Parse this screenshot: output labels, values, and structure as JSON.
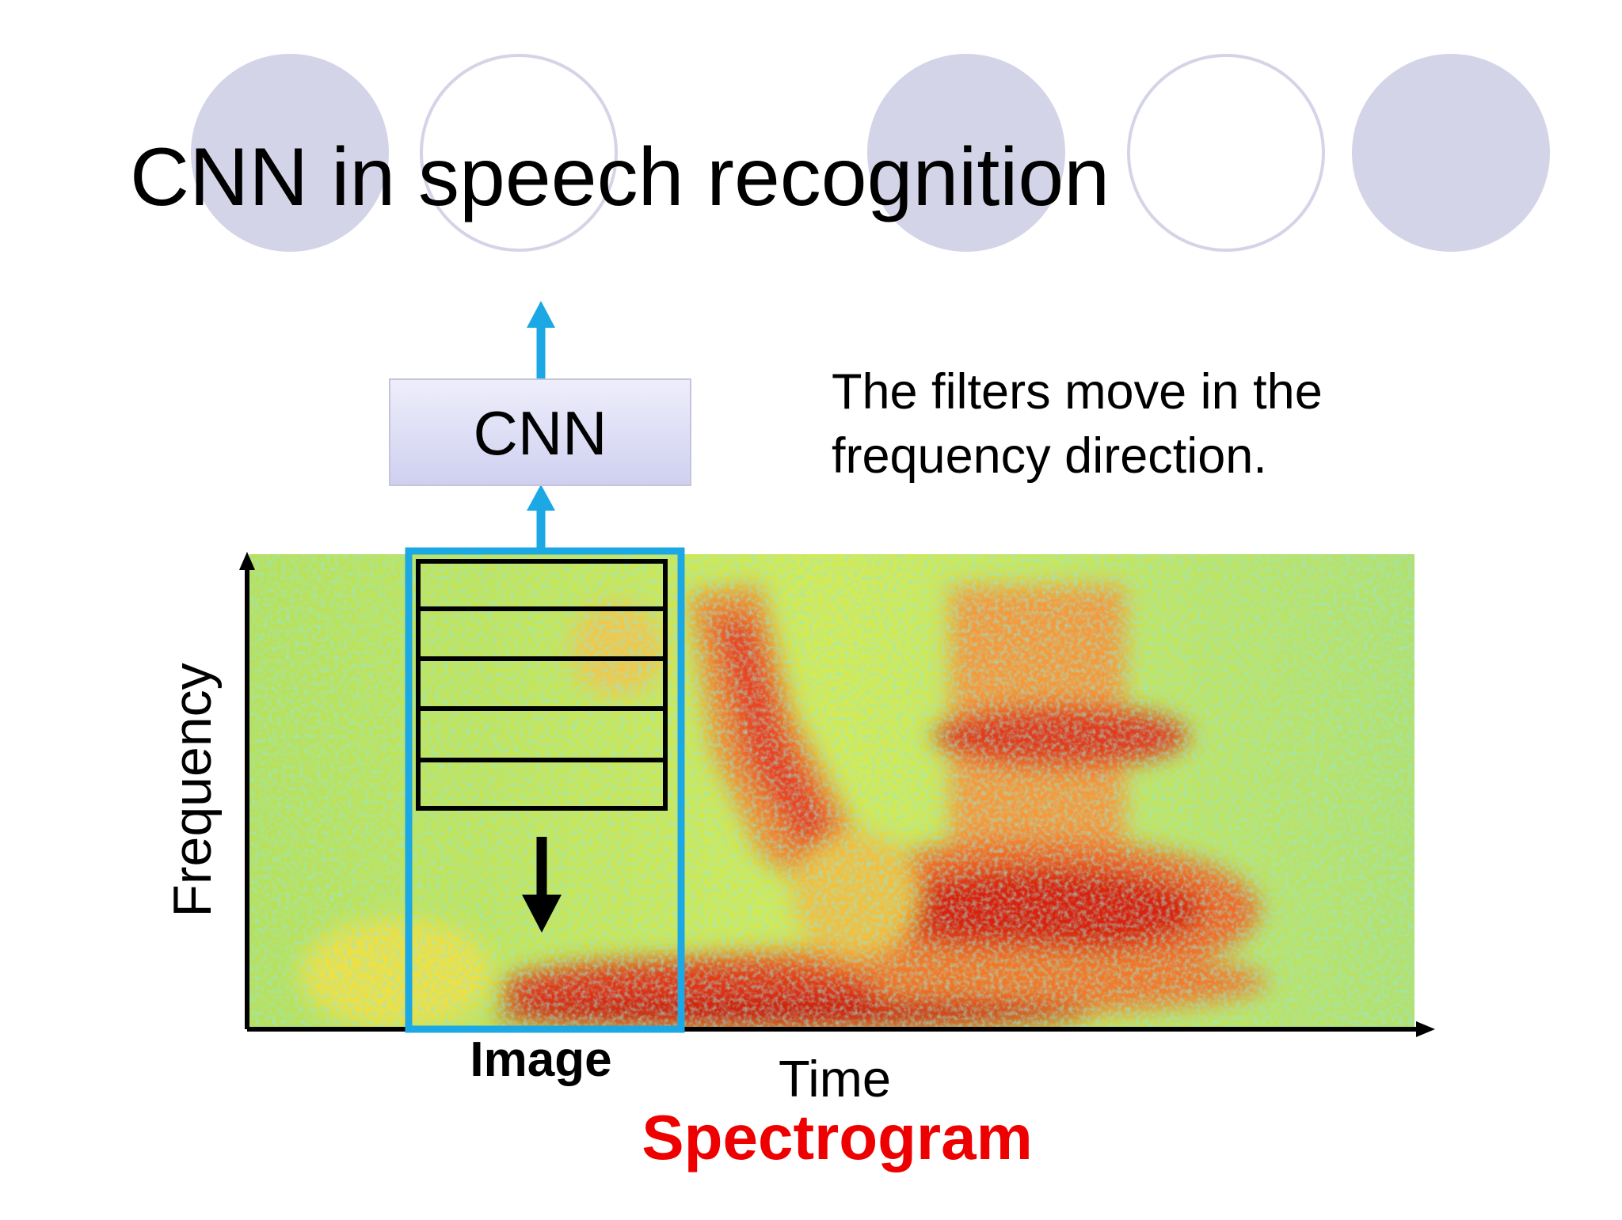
{
  "title": "CNN in speech recognition",
  "cnn_box": {
    "label": "CNN"
  },
  "note": {
    "lines": [
      "The filters move in the",
      "frequency direction."
    ]
  },
  "spectrogram": {
    "y_axis_label": "Frequency",
    "x_axis_label": "Time",
    "window_label": "Image",
    "caption": "Spectrogram"
  }
}
